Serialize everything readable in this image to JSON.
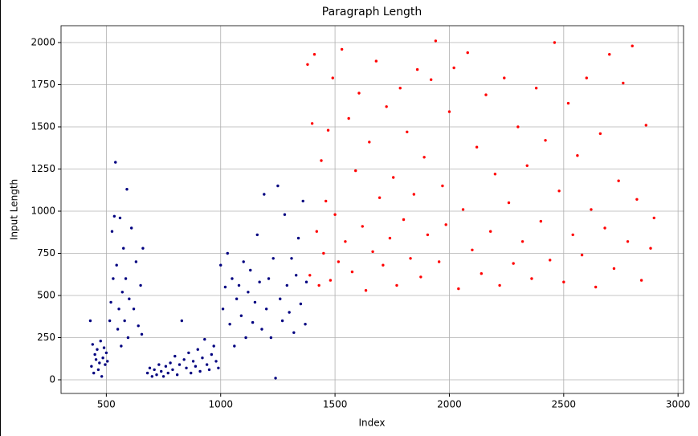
{
  "chart_data": {
    "type": "scatter",
    "title": "Paragraph Length",
    "x_label": "Index",
    "y_label": "Input Length",
    "xlim": [
      302,
      3024
    ],
    "ylim": [
      -81,
      2100
    ],
    "xticks": [
      500,
      1000,
      1500,
      2000,
      2500,
      3000
    ],
    "yticks": [
      0,
      250,
      500,
      750,
      1000,
      1250,
      1500,
      1750,
      2000
    ],
    "grid": true,
    "series": [
      {
        "color": "#000080",
        "x": [
          430,
          435,
          440,
          445,
          450,
          455,
          460,
          465,
          470,
          475,
          480,
          485,
          490,
          495,
          500,
          505,
          515,
          520,
          525,
          530,
          535,
          540,
          545,
          550,
          555,
          560,
          565,
          570,
          575,
          580,
          585,
          590,
          595,
          600,
          610,
          620,
          630,
          640,
          650,
          655,
          660,
          680,
          690,
          700,
          710,
          720,
          730,
          740,
          750,
          760,
          770,
          780,
          790,
          800,
          810,
          820,
          830,
          840,
          850,
          860,
          870,
          880,
          890,
          900,
          910,
          920,
          930,
          940,
          950,
          960,
          970,
          980,
          990,
          1000,
          1010,
          1020,
          1030,
          1040,
          1050,
          1060,
          1070,
          1080,
          1090,
          1100,
          1110,
          1120,
          1130,
          1140,
          1150,
          1160,
          1170,
          1180,
          1190,
          1200,
          1210,
          1220,
          1230,
          1240,
          1250,
          1260,
          1270,
          1280,
          1290,
          1300,
          1310,
          1320,
          1330,
          1340,
          1350,
          1360,
          1370,
          1375
        ],
        "values": [
          350,
          80,
          210,
          40,
          150,
          120,
          180,
          60,
          100,
          230,
          20,
          130,
          190,
          90,
          160,
          110,
          350,
          460,
          880,
          600,
          970,
          1290,
          680,
          300,
          420,
          960,
          200,
          520,
          780,
          350,
          600,
          1130,
          250,
          480,
          900,
          420,
          700,
          320,
          560,
          270,
          780,
          40,
          70,
          20,
          60,
          30,
          90,
          50,
          20,
          80,
          40,
          100,
          60,
          140,
          30,
          90,
          350,
          120,
          70,
          160,
          40,
          110,
          80,
          180,
          50,
          130,
          240,
          90,
          60,
          150,
          200,
          110,
          70,
          680,
          420,
          550,
          750,
          330,
          600,
          200,
          480,
          560,
          380,
          700,
          250,
          520,
          650,
          340,
          460,
          860,
          580,
          300,
          1100,
          420,
          600,
          250,
          720,
          10,
          1150,
          480,
          350,
          980,
          560,
          400,
          720,
          280,
          620,
          840,
          450,
          1060,
          330,
          580
        ]
      },
      {
        "color": "#ff0000",
        "x": [
          1380,
          1390,
          1400,
          1410,
          1420,
          1430,
          1440,
          1450,
          1460,
          1470,
          1480,
          1490,
          1500,
          1515,
          1530,
          1545,
          1560,
          1575,
          1590,
          1605,
          1620,
          1635,
          1650,
          1665,
          1680,
          1695,
          1710,
          1725,
          1740,
          1755,
          1770,
          1785,
          1800,
          1815,
          1830,
          1845,
          1860,
          1875,
          1890,
          1905,
          1920,
          1940,
          1955,
          1970,
          1985,
          2000,
          2020,
          2040,
          2060,
          2080,
          2100,
          2120,
          2140,
          2160,
          2180,
          2200,
          2220,
          2240,
          2260,
          2280,
          2300,
          2320,
          2340,
          2360,
          2380,
          2400,
          2420,
          2440,
          2460,
          2480,
          2500,
          2520,
          2540,
          2560,
          2580,
          2600,
          2620,
          2640,
          2660,
          2680,
          2700,
          2720,
          2740,
          2760,
          2780,
          2800,
          2820,
          2840,
          2860,
          2880,
          2895
        ],
        "values": [
          1870,
          620,
          1520,
          1930,
          880,
          560,
          1300,
          750,
          1060,
          1480,
          590,
          1790,
          980,
          700,
          1960,
          820,
          1550,
          640,
          1240,
          1700,
          910,
          530,
          1410,
          760,
          1890,
          1080,
          680,
          1620,
          840,
          1200,
          560,
          1730,
          950,
          1470,
          720,
          1100,
          1840,
          610,
          1320,
          860,
          1780,
          2010,
          700,
          1150,
          920,
          1590,
          1850,
          540,
          1010,
          1940,
          770,
          1380,
          630,
          1690,
          880,
          1220,
          560,
          1790,
          1050,
          690,
          1500,
          820,
          1270,
          600,
          1730,
          940,
          1420,
          710,
          2000,
          1120,
          580,
          1640,
          860,
          1330,
          740,
          1790,
          1010,
          550,
          1460,
          900,
          1930,
          660,
          1180,
          1760,
          820,
          1980,
          1070,
          590,
          1510,
          780,
          960
        ]
      }
    ]
  }
}
